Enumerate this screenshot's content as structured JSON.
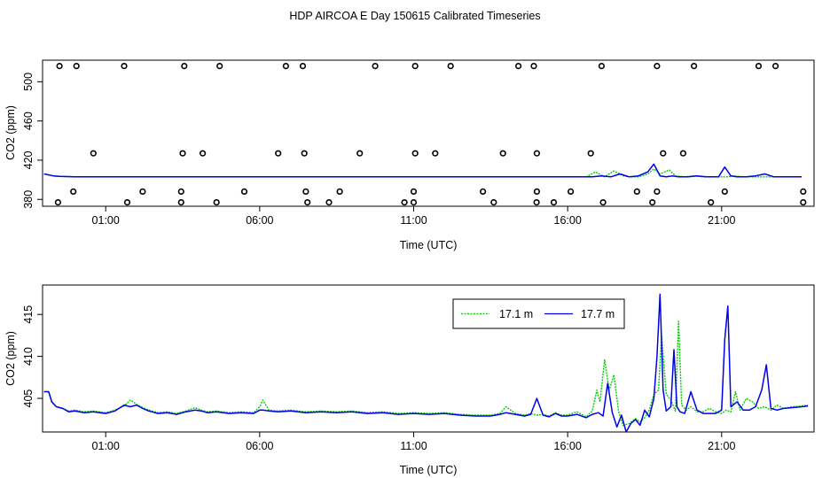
{
  "title": "HDP AIRCOA E  Day 150615  Calibrated Timeseries",
  "colors": {
    "series1": "#00cc00",
    "series2": "#0000ee",
    "axis": "#000000",
    "background": "#ffffff"
  },
  "chart_data": [
    {
      "type": "scatter",
      "title": "",
      "xlabel": "Time (UTC)",
      "ylabel": "CO2 (ppm)",
      "x_unit": "hours UTC",
      "xlim": [
        -1.05,
        24.0
      ],
      "ylim": [
        373.0,
        522.0
      ],
      "x_ticks": [
        1,
        6,
        11,
        16,
        21
      ],
      "x_tick_labels": [
        "01:00",
        "06:00",
        "11:00",
        "16:00",
        "21:00"
      ],
      "y_ticks": [
        380,
        420,
        460,
        500
      ],
      "y_tick_labels": [
        "380",
        "420",
        "460",
        "500"
      ],
      "grid": false,
      "legend": "none",
      "point_series": {
        "name": "",
        "x": [
          -0.5,
          0.05,
          1.6,
          3.55,
          4.7,
          6.85,
          7.4,
          9.75,
          11.05,
          12.2,
          14.4,
          14.9,
          17.1,
          18.9,
          20.1,
          22.2,
          22.75,
          0.6,
          3.5,
          4.15,
          6.6,
          7.45,
          9.25,
          11.05,
          11.7,
          13.9,
          15.0,
          16.75,
          19.1,
          19.75,
          -0.05,
          2.2,
          3.45,
          5.5,
          7.5,
          8.6,
          11.0,
          13.25,
          15.0,
          16.1,
          18.25,
          18.9,
          21.1,
          23.65,
          -0.55,
          1.7,
          3.45,
          4.6,
          7.55,
          8.25,
          10.7,
          11.0,
          13.6,
          14.99,
          15.55,
          17.15,
          18.75,
          20.65,
          23.65
        ],
        "y": [
          516,
          516,
          516,
          516,
          516,
          516,
          516,
          516,
          516,
          516,
          516,
          516,
          516,
          516,
          516,
          516,
          516,
          427,
          427,
          427,
          427,
          427,
          427,
          427,
          427,
          427,
          427,
          427,
          427,
          427,
          388,
          388,
          388,
          388,
          388,
          388,
          388,
          388,
          388,
          388,
          388,
          388,
          388,
          388,
          377,
          377,
          377,
          377,
          377,
          377,
          377,
          377,
          377,
          377,
          377,
          377,
          377,
          377,
          377
        ]
      },
      "series": [
        {
          "name": "",
          "color": "#00cc00",
          "x": [
            -1.0,
            -0.7,
            -0.5,
            0.0,
            2.0,
            4.0,
            6.0,
            8.0,
            10.0,
            12.0,
            14.0,
            16.0,
            16.6,
            16.9,
            17.2,
            17.5,
            17.8,
            18.0,
            18.3,
            18.6,
            18.8,
            19.0,
            19.3,
            19.5,
            19.8,
            20.1,
            20.4,
            20.7,
            21.0,
            21.2,
            21.4,
            21.7,
            22.0,
            22.3,
            22.6,
            22.9,
            23.2,
            23.5
          ],
          "y": [
            406,
            404,
            403.5,
            403,
            403,
            403,
            403,
            403,
            403,
            403,
            403,
            403,
            403,
            408,
            403,
            409,
            404,
            403,
            403,
            406,
            411,
            406,
            410,
            404,
            403,
            404,
            403,
            403,
            403,
            403,
            404,
            403,
            403,
            403,
            403,
            403,
            403,
            403
          ]
        },
        {
          "name": "",
          "color": "#0000ee",
          "x": [
            -1.0,
            -0.7,
            -0.5,
            0.0,
            2.0,
            4.0,
            6.0,
            8.0,
            10.0,
            12.0,
            14.0,
            16.0,
            16.8,
            17.1,
            17.4,
            17.7,
            18.0,
            18.3,
            18.6,
            18.8,
            19.0,
            19.2,
            19.4,
            19.6,
            19.9,
            20.2,
            20.5,
            20.8,
            20.9,
            21.1,
            21.3,
            21.5,
            21.8,
            22.1,
            22.4,
            22.7,
            23.0,
            23.3,
            23.6
          ],
          "y": [
            406,
            404,
            403.5,
            403,
            403,
            403,
            403,
            403,
            403,
            403,
            403,
            403,
            403,
            404,
            403,
            406,
            403,
            404,
            408,
            416,
            404,
            403,
            404,
            403,
            403,
            404,
            403,
            403,
            403,
            413,
            404,
            403,
            403,
            404,
            406,
            403,
            403,
            403,
            403
          ]
        }
      ]
    },
    {
      "type": "line",
      "title": "",
      "xlabel": "Time (UTC)",
      "ylabel": "CO2 (ppm)",
      "x_unit": "hours UTC",
      "xlim": [
        -1.05,
        24.0
      ],
      "ylim": [
        401.0,
        418.5
      ],
      "x_ticks": [
        1,
        6,
        11,
        16,
        21
      ],
      "x_tick_labels": [
        "01:00",
        "06:00",
        "11:00",
        "16:00",
        "21:00"
      ],
      "y_ticks": [
        405,
        410,
        415
      ],
      "y_tick_labels": [
        "405",
        "410",
        "415"
      ],
      "grid": false,
      "legend": "top-right",
      "series": [
        {
          "name": "17.1 m",
          "color": "#00cc00",
          "x": [
            -1.0,
            -0.85,
            -0.75,
            -0.6,
            -0.4,
            -0.2,
            0.0,
            0.3,
            0.6,
            1.0,
            1.3,
            1.6,
            1.8,
            2.0,
            2.2,
            2.4,
            2.7,
            3.0,
            3.3,
            3.6,
            3.9,
            4.1,
            4.3,
            4.6,
            5.0,
            5.4,
            5.8,
            6.0,
            6.1,
            6.3,
            6.6,
            7.0,
            7.5,
            8.0,
            8.5,
            9.0,
            9.5,
            10.0,
            10.5,
            11.0,
            11.5,
            12.0,
            12.5,
            13.0,
            13.5,
            13.8,
            14.0,
            14.3,
            14.6,
            14.8,
            15.0,
            15.2,
            15.4,
            15.6,
            15.8,
            16.0,
            16.3,
            16.6,
            16.8,
            16.95,
            17.05,
            17.2,
            17.35,
            17.5,
            17.65,
            17.8,
            18.0,
            18.2,
            18.35,
            18.5,
            18.65,
            18.8,
            18.95,
            19.05,
            19.2,
            19.35,
            19.5,
            19.6,
            19.7,
            19.85,
            20.0,
            20.2,
            20.4,
            20.6,
            20.8,
            21.0,
            21.15,
            21.3,
            21.45,
            21.6,
            21.8,
            22.0,
            22.2,
            22.4,
            22.6,
            22.8,
            23.0,
            23.3,
            23.6,
            23.8
          ],
          "y": [
            405.8,
            405.8,
            404.5,
            404.0,
            403.8,
            403.5,
            403.6,
            403.4,
            403.5,
            403.3,
            403.6,
            404.1,
            404.8,
            404.3,
            403.9,
            403.6,
            403.3,
            403.4,
            403.2,
            403.5,
            403.9,
            403.6,
            403.4,
            403.5,
            403.3,
            403.4,
            403.3,
            404.0,
            404.8,
            403.6,
            403.5,
            403.6,
            403.4,
            403.5,
            403.4,
            403.5,
            403.3,
            403.4,
            403.2,
            403.3,
            403.2,
            403.3,
            403.1,
            403.0,
            403.0,
            403.2,
            404.0,
            403.2,
            403.0,
            403.2,
            403.0,
            403.1,
            402.9,
            403.3,
            403.0,
            403.0,
            403.4,
            402.8,
            403.5,
            406.0,
            404.6,
            409.6,
            406.0,
            407.8,
            403.5,
            401.8,
            402.0,
            402.6,
            402.2,
            402.7,
            403.6,
            405.5,
            406.0,
            412.5,
            405.5,
            404.8,
            403.5,
            414.2,
            404.2,
            403.6,
            404.0,
            403.4,
            403.4,
            403.8,
            403.4,
            403.2,
            403.6,
            403.4,
            405.8,
            403.6,
            405.0,
            404.6,
            403.8,
            404.0,
            403.6,
            404.2,
            403.8,
            404.0,
            404.1,
            404.2
          ]
        },
        {
          "name": "17.7 m",
          "color": "#0000ee",
          "x": [
            -1.0,
            -0.85,
            -0.75,
            -0.6,
            -0.4,
            -0.2,
            0.0,
            0.3,
            0.6,
            1.0,
            1.3,
            1.6,
            1.8,
            2.0,
            2.2,
            2.4,
            2.7,
            3.0,
            3.3,
            3.6,
            3.9,
            4.1,
            4.3,
            4.6,
            5.0,
            5.4,
            5.8,
            6.0,
            6.1,
            6.3,
            6.6,
            7.0,
            7.5,
            8.0,
            8.5,
            9.0,
            9.5,
            10.0,
            10.5,
            11.0,
            11.5,
            12.0,
            12.5,
            13.0,
            13.5,
            13.8,
            14.0,
            14.3,
            14.6,
            14.8,
            15.0,
            15.2,
            15.4,
            15.6,
            15.8,
            16.0,
            16.3,
            16.6,
            16.8,
            17.0,
            17.15,
            17.3,
            17.45,
            17.6,
            17.75,
            17.9,
            18.05,
            18.2,
            18.35,
            18.5,
            18.65,
            18.8,
            18.9,
            19.0,
            19.1,
            19.2,
            19.35,
            19.45,
            19.55,
            19.65,
            19.8,
            20.0,
            20.2,
            20.4,
            20.6,
            20.8,
            21.0,
            21.1,
            21.2,
            21.3,
            21.5,
            21.7,
            21.9,
            22.1,
            22.3,
            22.45,
            22.6,
            22.8,
            23.0,
            23.3,
            23.6,
            23.8
          ],
          "y": [
            405.8,
            405.8,
            404.6,
            404.0,
            403.8,
            403.4,
            403.5,
            403.3,
            403.4,
            403.2,
            403.5,
            404.2,
            404.0,
            404.2,
            403.8,
            403.5,
            403.2,
            403.3,
            403.1,
            403.4,
            403.6,
            403.5,
            403.3,
            403.4,
            403.2,
            403.3,
            403.2,
            403.6,
            403.6,
            403.5,
            403.4,
            403.5,
            403.3,
            403.4,
            403.3,
            403.4,
            403.2,
            403.3,
            403.1,
            403.2,
            403.1,
            403.2,
            403.0,
            402.9,
            402.9,
            403.1,
            403.3,
            403.1,
            402.9,
            403.1,
            405.0,
            403.0,
            402.8,
            403.2,
            402.9,
            402.9,
            403.1,
            402.7,
            403.1,
            403.3,
            402.9,
            406.8,
            403.3,
            401.6,
            403.0,
            401.0,
            402.0,
            402.5,
            401.8,
            403.6,
            402.8,
            405.0,
            410.0,
            417.4,
            406.0,
            403.5,
            404.0,
            410.8,
            404.0,
            403.4,
            403.2,
            405.8,
            403.6,
            403.2,
            403.2,
            403.2,
            403.6,
            412.0,
            416.0,
            404.0,
            404.6,
            403.6,
            403.6,
            404.0,
            406.0,
            409.0,
            403.8,
            403.6,
            403.8,
            403.9,
            404.0,
            404.1
          ]
        }
      ]
    }
  ]
}
